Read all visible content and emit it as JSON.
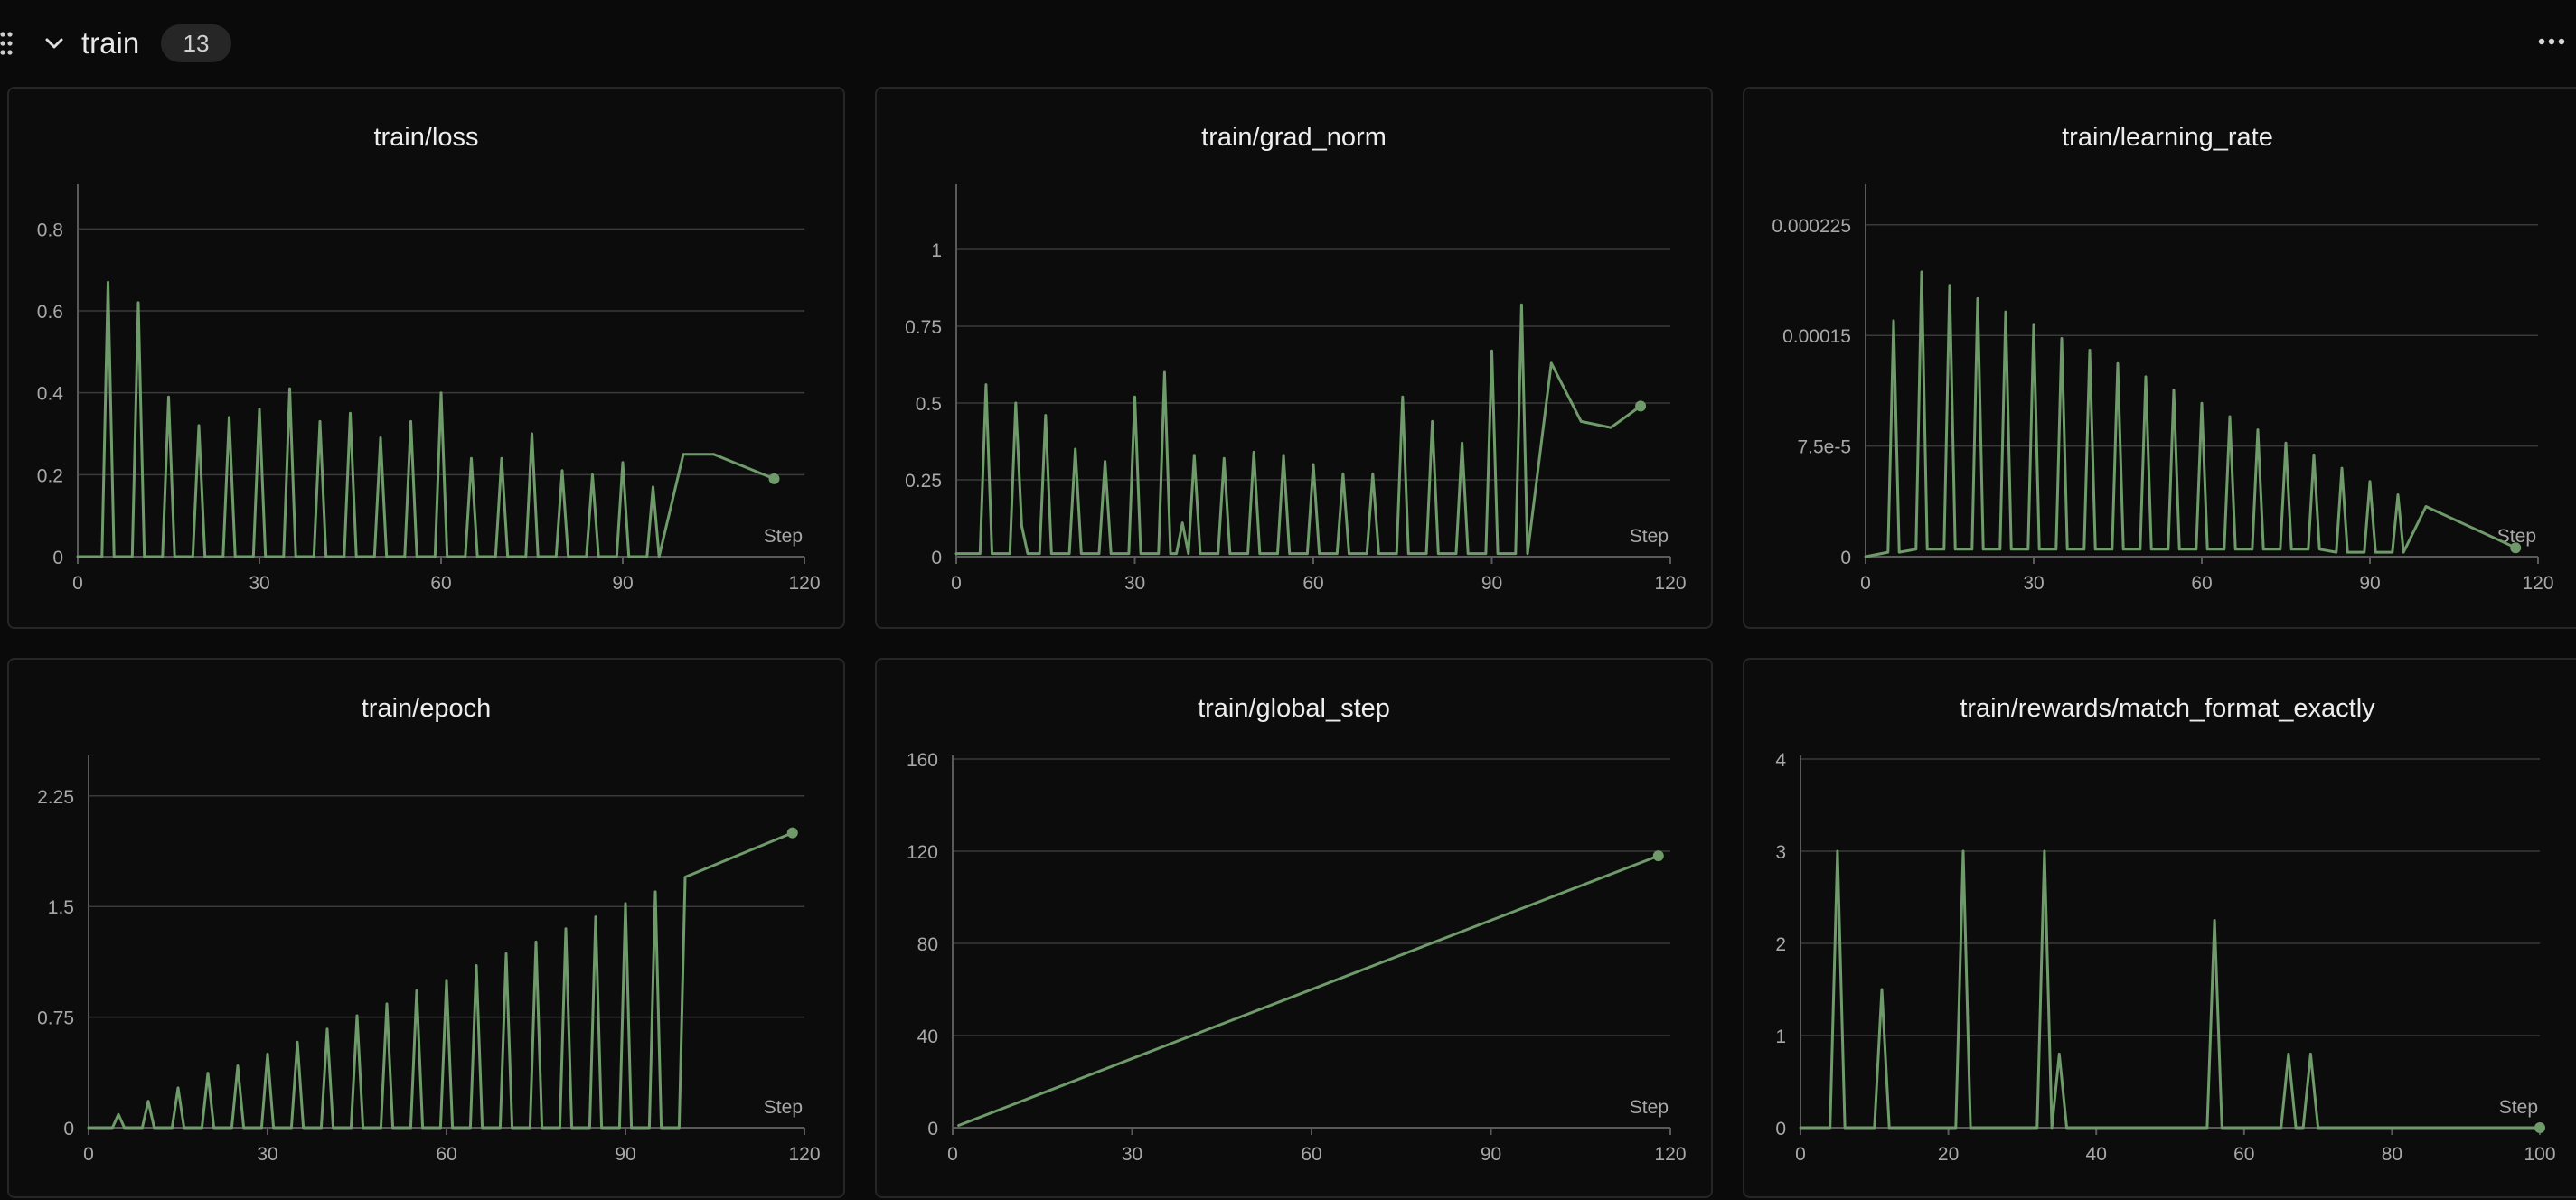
{
  "section": {
    "title": "train",
    "count": "13"
  },
  "colors": {
    "line": "#6f9a6a",
    "grid": "#3a3a3a",
    "axis": "#5a5a5a",
    "tick": "#a8a8a8"
  },
  "chart_data": [
    {
      "type": "line",
      "title": "train/loss",
      "xlabel": "Step",
      "xlim": [
        0,
        120
      ],
      "ylim": [
        0,
        0.9
      ],
      "xticks": [
        0,
        30,
        60,
        90,
        120
      ],
      "xtick_labels": [
        "0",
        "30",
        "60",
        "90",
        "120"
      ],
      "yticks": [
        0,
        0.2,
        0.4,
        0.6,
        0.8
      ],
      "ytick_labels": [
        "0",
        "0.2",
        "0.4",
        "0.6",
        "0.8"
      ],
      "x": [
        0,
        4,
        5,
        6,
        9,
        10,
        11,
        14,
        15,
        16,
        19,
        20,
        21,
        24,
        25,
        26,
        29,
        30,
        31,
        34,
        35,
        36,
        39,
        40,
        41,
        44,
        45,
        46,
        49,
        50,
        51,
        54,
        55,
        56,
        59,
        60,
        61,
        64,
        65,
        66,
        69,
        70,
        71,
        74,
        75,
        76,
        79,
        80,
        81,
        84,
        85,
        86,
        89,
        90,
        91,
        94,
        95,
        96,
        100,
        105,
        115
      ],
      "y": [
        0,
        0,
        0.67,
        0,
        0,
        0.62,
        0,
        0,
        0.39,
        0,
        0,
        0.32,
        0,
        0,
        0.34,
        0,
        0,
        0.36,
        0,
        0,
        0.41,
        0,
        0,
        0.33,
        0,
        0,
        0.35,
        0,
        0,
        0.29,
        0,
        0,
        0.33,
        0,
        0,
        0.4,
        0,
        0,
        0.24,
        0,
        0,
        0.24,
        0,
        0,
        0.3,
        0,
        0,
        0.21,
        0,
        0,
        0.2,
        0,
        0,
        0.23,
        0,
        0,
        0.17,
        0,
        0.25,
        0.25,
        0.19
      ]
    },
    {
      "type": "line",
      "title": "train/grad_norm",
      "xlabel": "Step",
      "xlim": [
        0,
        120
      ],
      "ylim": [
        0,
        1.2
      ],
      "xticks": [
        0,
        30,
        60,
        90,
        120
      ],
      "xtick_labels": [
        "0",
        "30",
        "60",
        "90",
        "120"
      ],
      "yticks": [
        0,
        0.25,
        0.5,
        0.75,
        1
      ],
      "ytick_labels": [
        "0",
        "0.25",
        "0.5",
        "0.75",
        "1"
      ],
      "x": [
        0,
        4,
        5,
        6,
        8,
        9,
        10,
        11,
        12,
        14,
        15,
        16,
        19,
        20,
        21,
        24,
        25,
        26,
        29,
        30,
        31,
        34,
        35,
        36,
        37,
        38,
        39,
        40,
        41,
        44,
        45,
        46,
        49,
        50,
        51,
        54,
        55,
        56,
        59,
        60,
        61,
        64,
        65,
        66,
        69,
        70,
        71,
        74,
        75,
        76,
        79,
        80,
        81,
        84,
        85,
        86,
        89,
        90,
        91,
        94,
        95,
        96,
        100,
        105,
        110,
        115
      ],
      "y": [
        0.01,
        0.01,
        0.56,
        0.01,
        0.01,
        0.01,
        0.5,
        0.1,
        0.01,
        0.01,
        0.46,
        0.01,
        0.01,
        0.35,
        0.01,
        0.01,
        0.31,
        0.01,
        0.01,
        0.52,
        0.01,
        0.01,
        0.6,
        0.01,
        0.01,
        0.11,
        0.01,
        0.33,
        0.01,
        0.01,
        0.32,
        0.01,
        0.01,
        0.34,
        0.01,
        0.01,
        0.33,
        0.01,
        0.01,
        0.3,
        0.01,
        0.01,
        0.27,
        0.01,
        0.01,
        0.27,
        0.01,
        0.01,
        0.52,
        0.01,
        0.01,
        0.44,
        0.01,
        0.01,
        0.37,
        0.01,
        0.01,
        0.67,
        0.01,
        0.01,
        0.82,
        0.01,
        0.63,
        0.44,
        0.42,
        0.49
      ]
    },
    {
      "type": "line",
      "title": "train/learning_rate",
      "xlabel": "Step",
      "xlim": [
        0,
        120
      ],
      "ylim": [
        0,
        0.00025
      ],
      "xticks": [
        0,
        30,
        60,
        90,
        120
      ],
      "xtick_labels": [
        "0",
        "30",
        "60",
        "90",
        "120"
      ],
      "yticks": [
        0,
        7.5e-05,
        0.00015,
        0.000225
      ],
      "ytick_labels": [
        "0",
        "7.5e-5",
        "0.00015",
        "0.000225"
      ],
      "x": [
        0,
        4,
        5,
        6,
        9,
        10,
        11,
        14,
        15,
        16,
        19,
        20,
        21,
        24,
        25,
        26,
        29,
        30,
        31,
        34,
        35,
        36,
        39,
        40,
        41,
        44,
        45,
        46,
        49,
        50,
        51,
        54,
        55,
        56,
        59,
        60,
        61,
        64,
        65,
        66,
        69,
        70,
        71,
        74,
        75,
        76,
        79,
        80,
        81,
        84,
        85,
        86,
        89,
        90,
        91,
        94,
        95,
        96,
        100,
        116
      ],
      "y": [
        0,
        3e-06,
        0.00016,
        3e-06,
        5e-06,
        0.000193,
        5e-06,
        5e-06,
        0.000184,
        5e-06,
        5e-06,
        0.000175,
        5e-06,
        5e-06,
        0.000166,
        5e-06,
        5e-06,
        0.000157,
        5e-06,
        5e-06,
        0.000148,
        5e-06,
        5e-06,
        0.00014,
        5e-06,
        5e-06,
        0.000131,
        5e-06,
        5e-06,
        0.000122,
        5e-06,
        5e-06,
        0.000113,
        5e-06,
        5e-06,
        0.000104,
        5e-06,
        5e-06,
        9.5e-05,
        5e-06,
        5e-06,
        8.6e-05,
        5e-06,
        5e-06,
        7.7e-05,
        5e-06,
        5e-06,
        6.9e-05,
        5e-06,
        3e-06,
        6e-05,
        3e-06,
        3e-06,
        5.1e-05,
        3e-06,
        3e-06,
        4.2e-05,
        3e-06,
        3.4e-05,
        6e-06
      ]
    },
    {
      "type": "line",
      "title": "train/epoch",
      "xlabel": "Step",
      "xlim": [
        0,
        120
      ],
      "ylim": [
        0,
        2.5
      ],
      "xticks": [
        0,
        30,
        60,
        90,
        120
      ],
      "xtick_labels": [
        "0",
        "30",
        "60",
        "90",
        "120"
      ],
      "yticks": [
        0,
        0.75,
        1.5,
        2.25
      ],
      "ytick_labels": [
        "0",
        "0.75",
        "1.5",
        "2.25"
      ],
      "x": [
        0,
        4,
        5,
        6,
        9,
        10,
        11,
        14,
        15,
        16,
        19,
        20,
        21,
        24,
        25,
        26,
        29,
        30,
        31,
        34,
        35,
        36,
        39,
        40,
        41,
        44,
        45,
        46,
        49,
        50,
        51,
        54,
        55,
        56,
        59,
        60,
        61,
        64,
        65,
        66,
        69,
        70,
        71,
        74,
        75,
        76,
        79,
        80,
        81,
        84,
        85,
        86,
        89,
        90,
        91,
        94,
        95,
        96,
        99,
        100,
        118
      ],
      "y": [
        0,
        0,
        0.09,
        0,
        0,
        0.18,
        0,
        0,
        0.27,
        0,
        0,
        0.37,
        0,
        0,
        0.42,
        0,
        0,
        0.5,
        0,
        0,
        0.58,
        0,
        0,
        0.67,
        0,
        0,
        0.76,
        0,
        0,
        0.84,
        0,
        0,
        0.93,
        0,
        0,
        1.0,
        0,
        0,
        1.1,
        0,
        0,
        1.18,
        0,
        0,
        1.26,
        0,
        0,
        1.35,
        0,
        0,
        1.43,
        0,
        0,
        1.52,
        0,
        0,
        1.6,
        0,
        0,
        1.7,
        2.0
      ]
    },
    {
      "type": "line",
      "title": "train/global_step",
      "xlabel": "Step",
      "xlim": [
        0,
        120
      ],
      "ylim": [
        0,
        160
      ],
      "xticks": [
        0,
        30,
        60,
        90,
        120
      ],
      "xtick_labels": [
        "0",
        "30",
        "60",
        "90",
        "120"
      ],
      "yticks": [
        0,
        40,
        80,
        120,
        160
      ],
      "ytick_labels": [
        "0",
        "40",
        "80",
        "120",
        "160"
      ],
      "x": [
        1,
        118
      ],
      "y": [
        1,
        118
      ]
    },
    {
      "type": "line",
      "title": "train/rewards/match_format_exactly",
      "xlabel": "Step",
      "xlim": [
        0,
        100
      ],
      "ylim": [
        0,
        4
      ],
      "xticks": [
        0,
        20,
        40,
        60,
        80,
        100
      ],
      "xtick_labels": [
        "0",
        "20",
        "40",
        "60",
        "80",
        "100"
      ],
      "yticks": [
        0,
        1,
        2,
        3,
        4
      ],
      "ytick_labels": [
        "0",
        "1",
        "2",
        "3",
        "4"
      ],
      "x": [
        0,
        4,
        5,
        6,
        10,
        11,
        12,
        21,
        22,
        23,
        32,
        33,
        34,
        35,
        36,
        55,
        56,
        57,
        65,
        66,
        67,
        68,
        69,
        70,
        100
      ],
      "y": [
        0,
        0,
        3,
        0,
        0,
        1.5,
        0,
        0,
        3,
        0,
        0,
        3,
        0,
        0.8,
        0,
        0,
        2.25,
        0,
        0,
        0.8,
        0,
        0,
        0.8,
        0,
        0
      ]
    }
  ]
}
